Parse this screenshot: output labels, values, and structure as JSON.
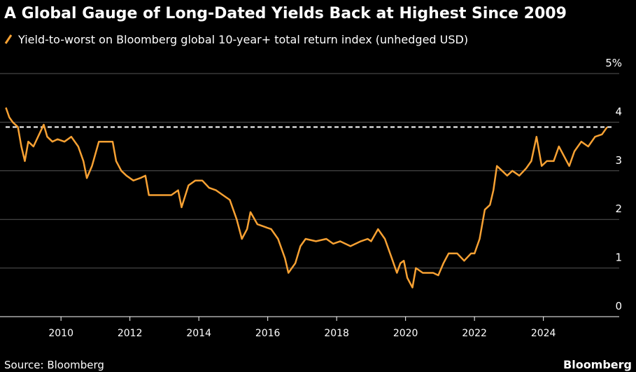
{
  "chart_data": {
    "type": "line",
    "title": "A Global Gauge of Long-Dated Yields Back at Highest Since 2009",
    "source": "Source: Bloomberg",
    "brand": "Bloomberg",
    "x": [
      2008.4,
      2008.5,
      2008.6,
      2008.75,
      2008.85,
      2008.95,
      2009.05,
      2009.2,
      2009.4,
      2009.5,
      2009.6,
      2009.75,
      2009.9,
      2010.1,
      2010.3,
      2010.5,
      2010.65,
      2010.75,
      2010.9,
      2011.1,
      2011.3,
      2011.5,
      2011.6,
      2011.75,
      2011.9,
      2012.1,
      2012.3,
      2012.45,
      2012.55,
      2012.75,
      2013.0,
      2013.2,
      2013.4,
      2013.5,
      2013.7,
      2013.9,
      2014.1,
      2014.3,
      2014.5,
      2014.7,
      2014.9,
      2015.1,
      2015.25,
      2015.4,
      2015.5,
      2015.7,
      2015.9,
      2016.1,
      2016.3,
      2016.5,
      2016.6,
      2016.8,
      2016.95,
      2017.1,
      2017.4,
      2017.7,
      2017.9,
      2018.1,
      2018.4,
      2018.7,
      2018.9,
      2019.0,
      2019.2,
      2019.4,
      2019.6,
      2019.75,
      2019.85,
      2019.95,
      2020.05,
      2020.2,
      2020.3,
      2020.5,
      2020.8,
      2020.95,
      2021.1,
      2021.25,
      2021.5,
      2021.7,
      2021.9,
      2022.0,
      2022.15,
      2022.3,
      2022.45,
      2022.55,
      2022.65,
      2022.8,
      2022.95,
      2023.1,
      2023.3,
      2023.5,
      2023.65,
      2023.8,
      2023.95,
      2024.1,
      2024.3,
      2024.45,
      2024.6,
      2024.75,
      2024.9,
      2025.1,
      2025.3,
      2025.5,
      2025.7,
      2025.85
    ],
    "series": [
      {
        "name": "Yield-to-worst on Bloomberg global 10-year+ total return index (unhedged USD)",
        "color": "#f7a133",
        "values": [
          4.3,
          4.1,
          4.0,
          3.9,
          3.5,
          3.2,
          3.6,
          3.5,
          3.8,
          3.95,
          3.7,
          3.6,
          3.65,
          3.6,
          3.7,
          3.5,
          3.2,
          2.85,
          3.1,
          3.6,
          3.6,
          3.6,
          3.2,
          3.0,
          2.9,
          2.8,
          2.85,
          2.9,
          2.5,
          2.5,
          2.5,
          2.5,
          2.6,
          2.25,
          2.7,
          2.8,
          2.8,
          2.65,
          2.6,
          2.5,
          2.4,
          2.0,
          1.6,
          1.8,
          2.15,
          1.9,
          1.85,
          1.8,
          1.6,
          1.2,
          0.9,
          1.1,
          1.45,
          1.6,
          1.55,
          1.6,
          1.5,
          1.55,
          1.45,
          1.55,
          1.6,
          1.55,
          1.8,
          1.6,
          1.2,
          0.9,
          1.1,
          1.15,
          0.8,
          0.6,
          1.0,
          0.9,
          0.9,
          0.85,
          1.1,
          1.3,
          1.3,
          1.15,
          1.3,
          1.3,
          1.6,
          2.2,
          2.3,
          2.6,
          3.1,
          3.0,
          2.9,
          3.0,
          2.9,
          3.05,
          3.2,
          3.7,
          3.1,
          3.2,
          3.2,
          3.5,
          3.3,
          3.1,
          3.4,
          3.6,
          3.5,
          3.7,
          3.75,
          3.9
        ]
      }
    ],
    "reference_line": 3.9,
    "xlim": [
      2008.23,
      2026.2
    ],
    "xticks": [
      2010,
      2012,
      2014,
      2016,
      2018,
      2020,
      2022,
      2024
    ],
    "ylim": [
      0,
      5
    ],
    "yticks": [
      0,
      1,
      2,
      3,
      4,
      {
        "value": 5,
        "label": "5%"
      }
    ],
    "grid": true
  }
}
